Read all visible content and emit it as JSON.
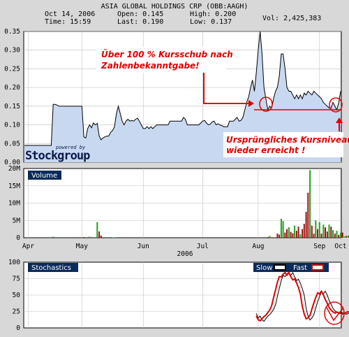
{
  "header": {
    "title": "ASIA GLOBAL HOLDINGS CRP (OBB:AAGH)",
    "date": "Oct 14, 2006",
    "time": "Time: 15:59",
    "open": "Open: 0.145",
    "last": "Last: 0.190",
    "high": "High: 0.200",
    "low": "Low: 0.137",
    "vol": "Vol: 2,425,383"
  },
  "watermark": {
    "logo_text": "Stockgroup",
    "powered_by": "powered by"
  },
  "annotations": {
    "top_line1": "Über 100 % Kursschub nach",
    "top_line2": "Zahlenbekanntgabe!",
    "bottom_line1": "Ursprüngliches Kursniveau",
    "bottom_line2": "wieder erreicht !",
    "color": "#e00000"
  },
  "panels": {
    "volume_label": "Volume",
    "stoch_label": "Stochastics",
    "slow_label": "Slow",
    "fast_label": "Fast"
  },
  "colors": {
    "price_fill": "#c8d8f0",
    "price_line": "#000000",
    "vol_up": "#20a020",
    "vol_down": "#a01010",
    "slow": "#000000",
    "fast": "#e00000",
    "panel_label_bg": "#0a2a5a"
  },
  "chart_data": [
    {
      "type": "area",
      "title": "ASIA GLOBAL HOLDINGS CRP (OBB:AAGH)",
      "x_ticks": [
        "Apr",
        "May",
        "Jun",
        "Jul",
        "Aug",
        "Sep",
        "Oct"
      ],
      "x_sublabel": "2006",
      "ylim": [
        0,
        0.35
      ],
      "y_ticks": [
        "0.00",
        "0.05",
        "0.10",
        "0.15",
        "0.20",
        "0.25",
        "0.30",
        "0.35"
      ],
      "series": [
        {
          "values": [
            0.045,
            0.045,
            0.045,
            0.045,
            0.045,
            0.045,
            0.045,
            0.045,
            0.045,
            0.045,
            0.045,
            0.045,
            0.045,
            0.045,
            0.045,
            0.155,
            0.155,
            0.153,
            0.15,
            0.15,
            0.15,
            0.15,
            0.15,
            0.15,
            0.15,
            0.15,
            0.15,
            0.15,
            0.15,
            0.15,
            0.15,
            0.068,
            0.065,
            0.09,
            0.1,
            0.092,
            0.105,
            0.1,
            0.104,
            0.07,
            0.06,
            0.065,
            0.068,
            0.07,
            0.07,
            0.08,
            0.085,
            0.095,
            0.13,
            0.15,
            0.13,
            0.11,
            0.1,
            0.11,
            0.115,
            0.11,
            0.112,
            0.11,
            0.115,
            0.118,
            0.11,
            0.1,
            0.09,
            0.09,
            0.095,
            0.09,
            0.095,
            0.09,
            0.095,
            0.1,
            0.1,
            0.1,
            0.1,
            0.1,
            0.1,
            0.1,
            0.11,
            0.11,
            0.11,
            0.11,
            0.11,
            0.11,
            0.11,
            0.12,
            0.115,
            0.1,
            0.1,
            0.1,
            0.1,
            0.1,
            0.1,
            0.1,
            0.105,
            0.11,
            0.112,
            0.105,
            0.1,
            0.102,
            0.108,
            0.11,
            0.1,
            0.103,
            0.1,
            0.098,
            0.095,
            0.095,
            0.095,
            0.11,
            0.11,
            0.11,
            0.115,
            0.12,
            0.11,
            0.112,
            0.12,
            0.14,
            0.16,
            0.175,
            0.2,
            0.22,
            0.19,
            0.24,
            0.3,
            0.35,
            0.29,
            0.2,
            0.17,
            0.14,
            0.15,
            0.145,
            0.17,
            0.19,
            0.2,
            0.23,
            0.29,
            0.29,
            0.25,
            0.2,
            0.19,
            0.19,
            0.18,
            0.17,
            0.18,
            0.17,
            0.18,
            0.17,
            0.185,
            0.18,
            0.19,
            0.185,
            0.18,
            0.19,
            0.185,
            0.18,
            0.175,
            0.17,
            0.16,
            0.155,
            0.15,
            0.145,
            0.145,
            0.16,
            0.15,
            0.14,
            0.16,
            0.19
          ]
        }
      ]
    },
    {
      "type": "bar",
      "title": "Volume",
      "ylim": [
        0,
        20000000
      ],
      "y_ticks": [
        "0",
        "5M",
        "10M",
        "15M",
        "20M"
      ],
      "series": [
        {
          "values": [
            0,
            0,
            0,
            0,
            0,
            0,
            0,
            0,
            0,
            0,
            0,
            0,
            0,
            0,
            0,
            300000,
            0,
            0,
            0,
            0,
            0,
            0,
            0,
            0,
            0,
            0,
            0,
            0,
            0,
            0,
            0,
            200000,
            0,
            0,
            300000,
            0,
            0,
            0,
            4500000,
            1800000,
            600000,
            0,
            0,
            0,
            0,
            200000,
            100000,
            100000,
            0,
            0,
            0,
            0,
            0,
            0,
            0,
            0,
            0,
            0,
            0,
            0,
            0,
            0,
            0,
            0,
            0,
            0,
            0,
            0,
            0,
            0,
            0,
            0,
            0,
            0,
            0,
            0,
            0,
            0,
            0,
            0,
            0,
            0,
            0,
            0,
            0,
            0,
            0,
            0,
            0,
            0,
            0,
            0,
            0,
            0,
            0,
            0,
            0,
            0,
            0,
            0,
            0,
            0,
            0,
            0,
            0,
            0,
            0,
            0,
            0,
            0,
            0,
            0,
            0,
            0,
            0,
            0,
            0,
            0,
            0,
            0,
            0,
            0,
            0,
            0,
            0,
            0,
            0,
            200000,
            500000,
            0,
            0,
            0,
            1200000,
            900000,
            5500000,
            4800000,
            1500000,
            2500000,
            3000000,
            1700000,
            1300000,
            3500000,
            2000000,
            3200000,
            1000000,
            2500000,
            4000000,
            7500000,
            13000000,
            19500000,
            3500000,
            1200000,
            5000000,
            2500000,
            4500000,
            1200000,
            3800000,
            3000000,
            1800000,
            3800000,
            3200000,
            2200000,
            1200000,
            2000000,
            800000,
            1400000,
            1500000,
            400000,
            500000,
            600000,
            300000,
            200000,
            500000,
            900000,
            2800000,
            0,
            0,
            0,
            0
          ],
          "direction": [
            "up",
            "up",
            "up",
            "up",
            "up",
            "up",
            "up",
            "up",
            "up",
            "up",
            "up",
            "up",
            "up",
            "up",
            "up",
            "up",
            "up",
            "up",
            "up",
            "up",
            "up",
            "up",
            "up",
            "up",
            "up",
            "up",
            "up",
            "up",
            "up",
            "up",
            "up",
            "down",
            "up",
            "up",
            "up",
            "up",
            "up",
            "up",
            "up",
            "down",
            "down",
            "up",
            "up",
            "up",
            "up",
            "up",
            "up",
            "up",
            "up",
            "up",
            "up",
            "up",
            "up",
            "up",
            "up",
            "up",
            "up",
            "up",
            "up",
            "up",
            "up",
            "up",
            "up",
            "up",
            "up",
            "up",
            "up",
            "up",
            "up",
            "up",
            "up",
            "up",
            "up",
            "up",
            "up",
            "up",
            "up",
            "up",
            "up",
            "up",
            "up",
            "up",
            "up",
            "up",
            "up",
            "up",
            "up",
            "up",
            "up",
            "up",
            "up",
            "up",
            "up",
            "up",
            "up",
            "up",
            "up",
            "up",
            "up",
            "up",
            "up",
            "up",
            "up",
            "up",
            "up",
            "up",
            "up",
            "up",
            "up",
            "up",
            "up",
            "up",
            "up",
            "up",
            "up",
            "up",
            "up",
            "up",
            "up",
            "up",
            "up",
            "up",
            "up",
            "up",
            "up",
            "up",
            "up",
            "down",
            "up",
            "up",
            "up",
            "up",
            "down",
            "down",
            "up",
            "up",
            "down",
            "down",
            "up",
            "down",
            "down",
            "up",
            "down",
            "down",
            "up",
            "down",
            "down",
            "down",
            "down",
            "up",
            "down",
            "down",
            "up",
            "down",
            "up",
            "down",
            "up",
            "down",
            "down",
            "up",
            "down",
            "up",
            "down",
            "up",
            "down",
            "up",
            "down",
            "up",
            "down",
            "up",
            "down",
            "down",
            "down",
            "down",
            "down",
            "up",
            "up",
            "up",
            "up",
            "up",
            "up"
          ]
        }
      ]
    },
    {
      "type": "line",
      "title": "Stochastics",
      "ylim": [
        0,
        100
      ],
      "y_ticks": [
        "0",
        "25",
        "50",
        "75",
        "100"
      ],
      "series": [
        {
          "name": "Slow",
          "values": [
            null,
            null,
            null,
            null,
            null,
            null,
            null,
            null,
            null,
            null,
            null,
            null,
            null,
            null,
            null,
            null,
            null,
            null,
            null,
            null,
            null,
            null,
            null,
            null,
            null,
            null,
            null,
            null,
            null,
            null,
            null,
            null,
            null,
            null,
            null,
            null,
            null,
            null,
            null,
            null,
            null,
            null,
            null,
            null,
            null,
            null,
            null,
            null,
            null,
            null,
            null,
            null,
            null,
            null,
            null,
            null,
            null,
            null,
            null,
            null,
            null,
            null,
            null,
            null,
            null,
            null,
            null,
            null,
            null,
            null,
            null,
            null,
            null,
            null,
            null,
            null,
            null,
            null,
            null,
            null,
            null,
            null,
            null,
            null,
            null,
            null,
            null,
            null,
            null,
            null,
            null,
            null,
            null,
            null,
            null,
            null,
            null,
            null,
            null,
            null,
            null,
            null,
            null,
            null,
            null,
            null,
            null,
            null,
            null,
            null,
            null,
            null,
            null,
            null,
            null,
            null,
            null,
            null,
            null,
            null,
            null,
            22,
            15,
            18,
            12,
            10,
            14,
            18,
            20,
            24,
            28,
            35,
            48,
            60,
            72,
            80,
            78,
            82,
            85,
            80,
            84,
            78,
            72,
            74,
            68,
            60,
            50,
            30,
            18,
            12,
            15,
            20,
            30,
            40,
            48,
            55,
            52,
            56,
            50,
            42,
            36,
            30,
            26,
            24,
            22,
            24,
            23,
            22,
            21,
            22,
            24,
            25,
            24,
            23,
            20,
            18,
            24
          ]
        },
        {
          "name": "Fast",
          "values": [
            null,
            null,
            null,
            null,
            null,
            null,
            null,
            null,
            null,
            null,
            null,
            null,
            null,
            null,
            null,
            null,
            null,
            null,
            null,
            null,
            null,
            null,
            null,
            null,
            null,
            null,
            null,
            null,
            null,
            null,
            null,
            null,
            null,
            null,
            null,
            null,
            null,
            null,
            null,
            null,
            null,
            null,
            null,
            null,
            null,
            null,
            null,
            null,
            null,
            null,
            null,
            null,
            null,
            null,
            null,
            null,
            null,
            null,
            null,
            null,
            null,
            null,
            null,
            null,
            null,
            null,
            null,
            null,
            null,
            null,
            null,
            null,
            null,
            null,
            null,
            null,
            null,
            null,
            null,
            null,
            null,
            null,
            null,
            null,
            null,
            null,
            null,
            null,
            null,
            null,
            null,
            null,
            null,
            null,
            null,
            null,
            null,
            null,
            null,
            null,
            null,
            null,
            null,
            null,
            null,
            null,
            null,
            null,
            null,
            null,
            null,
            null,
            null,
            null,
            null,
            null,
            null,
            null,
            null,
            null,
            null,
            null,
            null,
            null,
            null,
            null,
            null,
            null,
            null,
            null,
            null,
            null,
            null,
            null,
            null,
            null,
            null,
            null,
            null,
            null,
            null,
            null,
            null,
            null,
            null,
            null,
            null,
            null,
            null,
            null,
            null,
            null,
            null,
            null,
            null,
            null,
            null,
            null,
            null,
            null,
            null,
            null,
            null,
            null,
            null,
            null,
            null,
            null,
            null,
            null,
            null,
            null,
            null,
            null,
            null,
            null,
            null,
            null,
            null,
            null,
            null
          ]
        }
      ]
    }
  ]
}
